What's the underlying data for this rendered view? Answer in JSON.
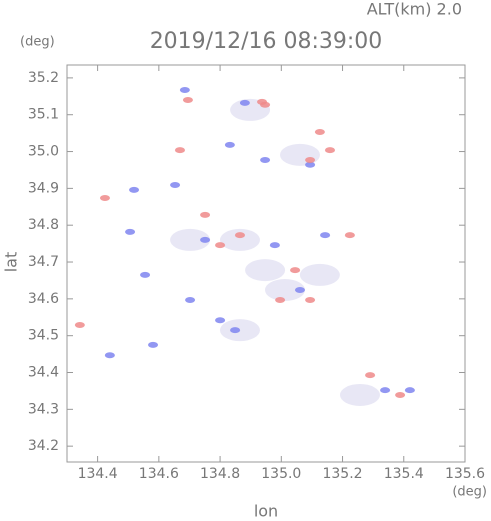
{
  "chart_data": {
    "type": "scatter",
    "title": "2019/12/16 08:39:00",
    "subtitle": "ALT(km) 2.0",
    "y_unit": "(deg)",
    "x_unit": "(deg)",
    "xlabel": "lon",
    "ylabel": "lat",
    "xlim": [
      134.3,
      135.6
    ],
    "ylim": [
      34.157,
      35.235
    ],
    "xticks": [
      134.4,
      134.6,
      134.8,
      {
        "value": 135,
        "label": "135.0"
      },
      135.2,
      135.4,
      135.6
    ],
    "yticks": [
      34.2,
      34.3,
      34.4,
      34.5,
      34.6,
      34.7,
      34.8,
      34.9,
      {
        "value": 35,
        "label": "35.0"
      },
      35.1,
      35.2
    ],
    "series": [
      {
        "color": "#e6e4f4",
        "x": [
          134.865,
          135.257,
          134.702,
          134.865,
          135.061,
          135.012,
          135.126,
          134.898,
          134.947
        ],
        "values": [
          34.515,
          34.339,
          34.76,
          34.76,
          34.991,
          34.624,
          34.665,
          35.113,
          34.678
        ]
      },
      {
        "color": "#7f85f0",
        "x": [
          134.506,
          134.881,
          135.339,
          135.42,
          135.143,
          134.751,
          134.702,
          134.849,
          134.947,
          134.832,
          135.061,
          134.44,
          134.581,
          134.555,
          134.8,
          134.979,
          135.094,
          134.685,
          134.653,
          134.519
        ],
        "values": [
          34.782,
          35.132,
          34.352,
          34.352,
          34.773,
          34.76,
          34.597,
          34.515,
          34.977,
          35.018,
          34.624,
          34.447,
          34.475,
          34.665,
          34.542,
          34.746,
          34.964,
          35.167,
          34.909,
          34.896
        ]
      },
      {
        "color": "#ef8a8a",
        "x": [
          134.424,
          134.937,
          135.126,
          134.695,
          134.669,
          135.29,
          135.094,
          134.8,
          134.865,
          134.996,
          135.094,
          134.342,
          134.947,
          135.045,
          135.159,
          135.224,
          134.751,
          135.388
        ],
        "values": [
          34.874,
          35.135,
          35.053,
          35.14,
          35.004,
          34.393,
          34.977,
          34.746,
          34.773,
          34.597,
          34.597,
          34.529,
          35.127,
          34.678,
          35.004,
          34.773,
          34.828,
          34.339
        ]
      }
    ]
  }
}
